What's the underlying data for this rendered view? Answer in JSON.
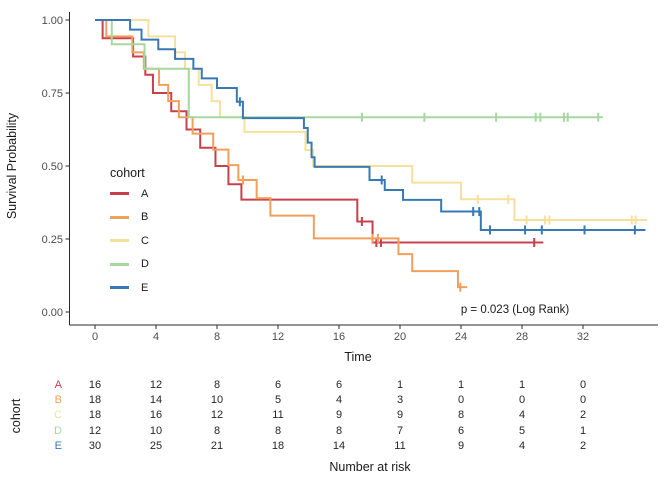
{
  "chart_data": {
    "type": "line",
    "subtype": "kaplan-meier-step",
    "xlabel": "Time",
    "ylabel": "Survival Probability",
    "annotation": "p = 0.023 (Log Rank)",
    "legend_title": "cohort",
    "legend_position": "inside-left",
    "grid": false,
    "xlim": [
      -1.7,
      36.9
    ],
    "ylim": [
      0.0,
      1.0
    ],
    "x_ticks": [
      0,
      4,
      8,
      12,
      16,
      20,
      24,
      28,
      32
    ],
    "x_tick_labels": [
      "0",
      "4",
      "8",
      "12",
      "16",
      "20",
      "24",
      "28",
      "32"
    ],
    "y_ticks": [
      1.0,
      0.75,
      0.5,
      0.25,
      0.0
    ],
    "y_tick_labels": [
      "1.00",
      "0.75",
      "0.50",
      "0.25",
      "0.00"
    ],
    "axis_color": "#2b2b2b",
    "tick_label_color": "#4d4d4d",
    "series": [
      {
        "name": "A",
        "color": "#C7404B",
        "steps": [
          [
            0,
            1.0
          ],
          [
            0.5,
            0.9375
          ],
          [
            2.5,
            0.875
          ],
          [
            3.3,
            0.8125
          ],
          [
            3.8,
            0.75
          ],
          [
            5.0,
            0.6875
          ],
          [
            6.0,
            0.625
          ],
          [
            6.9,
            0.5625
          ],
          [
            7.9,
            0.5
          ],
          [
            8.75,
            0.4375
          ],
          [
            9.6,
            0.385
          ],
          [
            17.2,
            0.31
          ],
          [
            18.2,
            0.238
          ]
        ],
        "censors": [
          [
            17.5,
            0.31
          ],
          [
            18.45,
            0.238
          ],
          [
            18.75,
            0.238
          ],
          [
            28.8,
            0.238
          ]
        ],
        "end": 29.4
      },
      {
        "name": "B",
        "color": "#F1A05C",
        "steps": [
          [
            0,
            1.0
          ],
          [
            0.74,
            0.944
          ],
          [
            2.45,
            0.889
          ],
          [
            3.2,
            0.833
          ],
          [
            4.2,
            0.778
          ],
          [
            4.8,
            0.722
          ],
          [
            5.5,
            0.667
          ],
          [
            6.4,
            0.611
          ],
          [
            7.75,
            0.556
          ],
          [
            8.75,
            0.503
          ],
          [
            9.4,
            0.452
          ],
          [
            10.6,
            0.39
          ],
          [
            11.5,
            0.33
          ],
          [
            14.35,
            0.252
          ],
          [
            19.9,
            0.198
          ],
          [
            20.8,
            0.14
          ],
          [
            23.8,
            0.085
          ]
        ],
        "censors": [
          [
            9.7,
            0.452
          ],
          [
            18.2,
            0.252
          ],
          [
            18.55,
            0.252
          ],
          [
            23.95,
            0.085
          ]
        ],
        "end": 24.4
      },
      {
        "name": "C",
        "color": "#F6E09D",
        "steps": [
          [
            0,
            1.0
          ],
          [
            3.5,
            0.944
          ],
          [
            5.25,
            0.889
          ],
          [
            5.9,
            0.833
          ],
          [
            6.8,
            0.778
          ],
          [
            7.65,
            0.722
          ],
          [
            8.2,
            0.667
          ],
          [
            9.8,
            0.617
          ],
          [
            13.8,
            0.555
          ],
          [
            14.3,
            0.5
          ],
          [
            20.8,
            0.443
          ],
          [
            24.0,
            0.386
          ],
          [
            27.5,
            0.315
          ]
        ],
        "censors": [
          [
            25.1,
            0.386
          ],
          [
            27.1,
            0.386
          ],
          [
            28.3,
            0.315
          ],
          [
            29.5,
            0.315
          ],
          [
            29.8,
            0.315
          ],
          [
            35.2,
            0.315
          ],
          [
            35.45,
            0.315
          ]
        ],
        "end": 36.2
      },
      {
        "name": "D",
        "color": "#A6D8A0",
        "steps": [
          [
            0,
            1.0
          ],
          [
            1.1,
            0.917
          ],
          [
            3.25,
            0.833
          ],
          [
            6.15,
            0.667
          ]
        ],
        "censors": [
          [
            17.5,
            0.667
          ],
          [
            21.6,
            0.667
          ],
          [
            26.3,
            0.667
          ],
          [
            28.9,
            0.667
          ],
          [
            29.2,
            0.667
          ],
          [
            30.75,
            0.667
          ],
          [
            31.0,
            0.667
          ],
          [
            33.0,
            0.667
          ]
        ],
        "end": 33.3
      },
      {
        "name": "E",
        "color": "#3879B5",
        "steps": [
          [
            0,
            1.0
          ],
          [
            2.3,
            0.967
          ],
          [
            3.05,
            0.933
          ],
          [
            4.15,
            0.9
          ],
          [
            5.25,
            0.867
          ],
          [
            6.45,
            0.833
          ],
          [
            7.0,
            0.8
          ],
          [
            8.0,
            0.767
          ],
          [
            9.3,
            0.72
          ],
          [
            9.7,
            0.664
          ],
          [
            13.7,
            0.63
          ],
          [
            13.95,
            0.58
          ],
          [
            14.2,
            0.53
          ],
          [
            14.4,
            0.497
          ],
          [
            18.0,
            0.452
          ],
          [
            19.0,
            0.418
          ],
          [
            20.2,
            0.384
          ],
          [
            22.7,
            0.344
          ],
          [
            25.3,
            0.281
          ]
        ],
        "censors": [
          [
            9.5,
            0.72
          ],
          [
            18.8,
            0.452
          ],
          [
            24.8,
            0.344
          ],
          [
            25.2,
            0.344
          ],
          [
            25.9,
            0.281
          ],
          [
            28.2,
            0.281
          ],
          [
            29.3,
            0.281
          ],
          [
            32.1,
            0.281
          ],
          [
            35.4,
            0.281
          ]
        ],
        "end": 36.1
      }
    ]
  },
  "risk_table": {
    "ylabel": "cohort",
    "xlabel": "Number at risk",
    "times": [
      0,
      4,
      8,
      12,
      16,
      20,
      24,
      28,
      32
    ],
    "rows": [
      {
        "label": "A",
        "color": "#C7404B",
        "values": [
          "16",
          "12",
          "8",
          "6",
          "6",
          "1",
          "1",
          "1",
          "0"
        ]
      },
      {
        "label": "B",
        "color": "#F1A05C",
        "values": [
          "18",
          "14",
          "10",
          "5",
          "4",
          "3",
          "0",
          "0",
          "0"
        ]
      },
      {
        "label": "C",
        "color": "#F6E09D",
        "values": [
          "18",
          "16",
          "12",
          "11",
          "9",
          "9",
          "8",
          "4",
          "2"
        ]
      },
      {
        "label": "D",
        "color": "#A6D8A0",
        "values": [
          "12",
          "10",
          "8",
          "8",
          "8",
          "7",
          "6",
          "5",
          "1"
        ]
      },
      {
        "label": "E",
        "color": "#3879B5",
        "values": [
          "30",
          "25",
          "21",
          "18",
          "14",
          "11",
          "9",
          "4",
          "2"
        ]
      }
    ]
  }
}
